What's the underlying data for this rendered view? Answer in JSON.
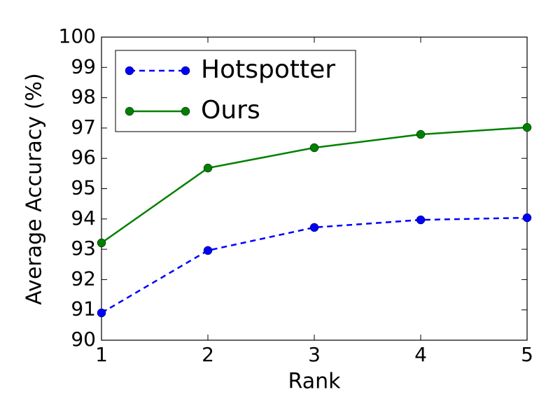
{
  "chart_data": {
    "type": "line",
    "xlabel": "Rank",
    "ylabel": "Average Accuracy (%)",
    "x": [
      1,
      2,
      3,
      4,
      5
    ],
    "series": [
      {
        "name": "Hotspotter",
        "color": "#0000ff",
        "linestyle": "dashed",
        "marker": "o",
        "values": [
          90.9,
          92.96,
          93.72,
          93.97,
          94.04
        ]
      },
      {
        "name": "Ours",
        "color": "#008000",
        "linestyle": "solid",
        "marker": "o",
        "values": [
          93.21,
          95.68,
          96.35,
          96.79,
          97.02
        ]
      }
    ],
    "xlim": [
      1,
      5
    ],
    "xticks": [
      1,
      2,
      3,
      4,
      5
    ],
    "ylim": [
      90,
      100
    ],
    "yticks": [
      90,
      91,
      92,
      93,
      94,
      95,
      96,
      97,
      98,
      99,
      100
    ],
    "grid": false,
    "legend": "upper left"
  }
}
